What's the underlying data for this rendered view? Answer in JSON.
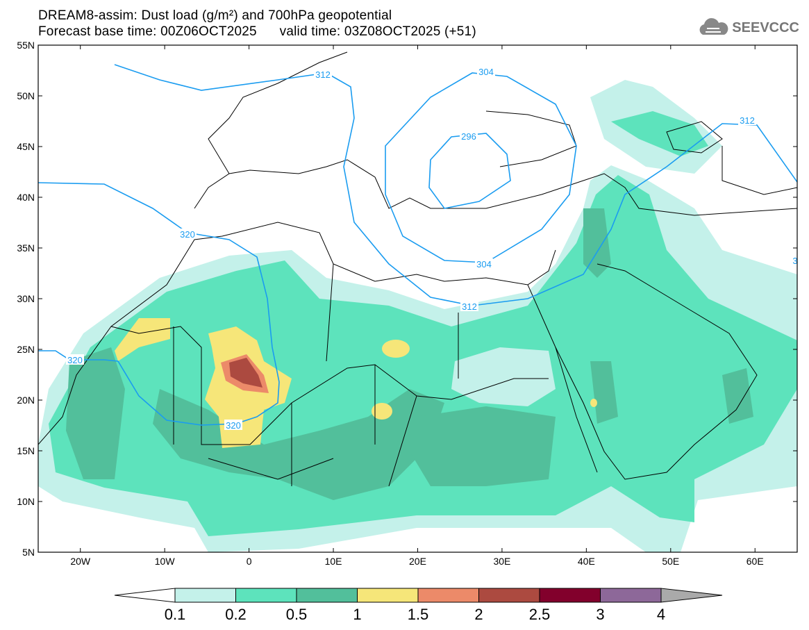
{
  "header": {
    "title": "DREAM8-assim: Dust load (g/m²) and 700hPa geopotential",
    "base_time": "Forecast base time: 00Z06OCT2025",
    "valid_time": "valid time: 03Z08OCT2025 (+51)",
    "logo": "SEEVCCC"
  },
  "axes": {
    "lat_labels": [
      "55N",
      "50N",
      "45N",
      "40N",
      "35N",
      "30N",
      "25N",
      "20N",
      "15N",
      "10N",
      "5N"
    ],
    "lon_labels": [
      "20W",
      "10W",
      "0",
      "10E",
      "20E",
      "30E",
      "40E",
      "50E",
      "60E"
    ]
  },
  "contour_labels": [
    "312",
    "312",
    "312",
    "304",
    "304",
    "296",
    "320",
    "320",
    "320",
    "3"
  ],
  "legend": {
    "ticks": [
      "0.1",
      "0.2",
      "0.5",
      "1",
      "1.5",
      "2",
      "2.5",
      "3",
      "4"
    ],
    "colors": [
      "#ffffff",
      "#c4f1ea",
      "#5de3bc",
      "#52bf9b",
      "#f6e679",
      "#ec8a69",
      "#ac4a40",
      "#82002c",
      "#8d6899",
      "#aaaaaa"
    ]
  }
}
